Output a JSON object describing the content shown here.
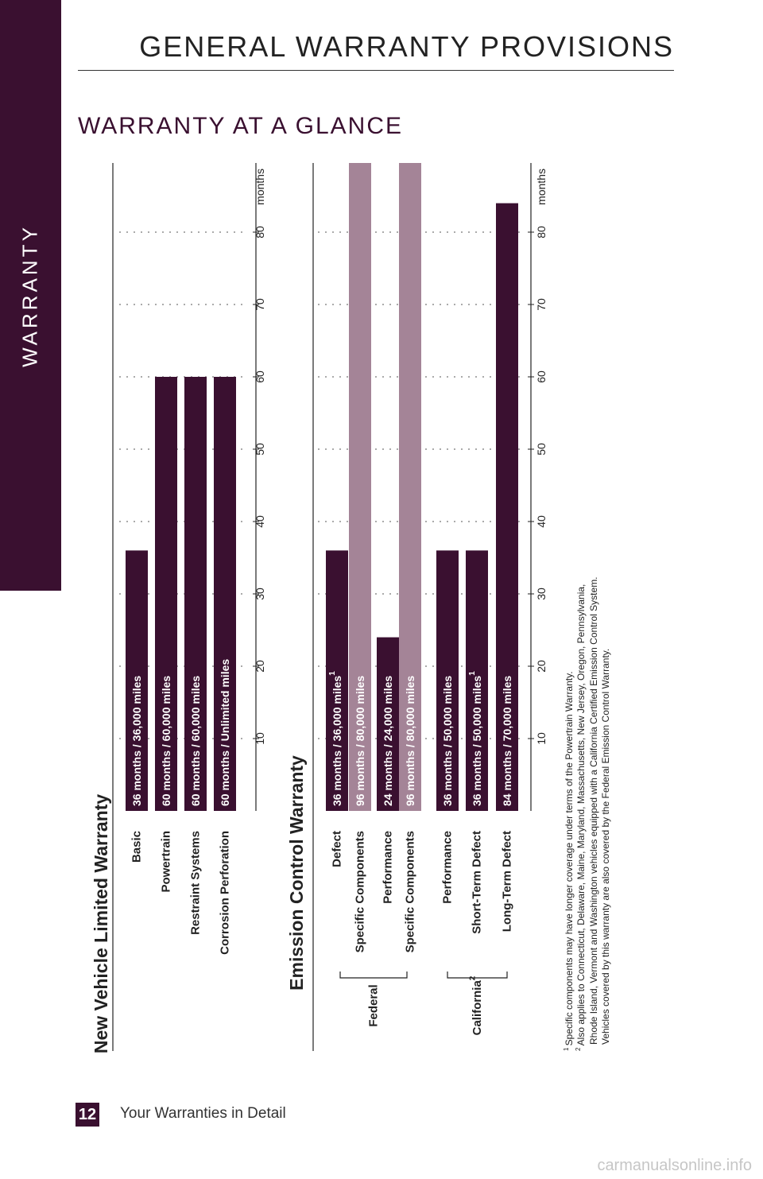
{
  "sidebar": {
    "label": "WARRANTY"
  },
  "header": {
    "title": "GENERAL WARRANTY PROVISIONS"
  },
  "section": {
    "title": "WARRANTY AT A GLANCE"
  },
  "colors": {
    "dark": "#3a1030",
    "light": "#a48497",
    "text": "#222222"
  },
  "chart_data": [
    {
      "type": "bar",
      "title": "New Vehicle Limited Warranty",
      "xlabel": "months",
      "xlim": [
        0,
        90
      ],
      "ticks": [
        10,
        20,
        30,
        40,
        50,
        60,
        70,
        80
      ],
      "grid": true,
      "bars": [
        {
          "category": "Basic",
          "value": 36,
          "label": "36 months  /  36,000 miles",
          "sup": "",
          "color": "dark"
        },
        {
          "category": "Powertrain",
          "value": 60,
          "label": "60 months  /  60,000 miles",
          "sup": "",
          "color": "dark"
        },
        {
          "category": "Restraint Systems",
          "value": 60,
          "label": "60 months  /  60,000 miles",
          "sup": "",
          "color": "dark"
        },
        {
          "category": "Corrosion Perforation",
          "value": 60,
          "label": "60 months  /  Unlimited miles",
          "sup": "",
          "color": "dark"
        }
      ]
    },
    {
      "type": "bar",
      "title": "Emission Control Warranty",
      "xlabel": "months",
      "xlim": [
        0,
        90
      ],
      "ticks": [
        10,
        20,
        30,
        40,
        50,
        60,
        70,
        80
      ],
      "grid": true,
      "groups": [
        {
          "name": "Federal",
          "sup": ""
        },
        {
          "name": "California",
          "sup": "2"
        }
      ],
      "bars": [
        {
          "group": "Federal",
          "category": "Defect",
          "value": 36,
          "label": "36 months  /  36,000 miles",
          "sup": "1",
          "color": "dark"
        },
        {
          "group": "Federal",
          "category": "Specific Components",
          "value": 96,
          "label": "96 months  /  80,000 miles",
          "sup": "",
          "color": "light"
        },
        {
          "group": "Federal",
          "category": "Performance",
          "value": 24,
          "label": "24 months  /  24,000 miles",
          "sup": "",
          "color": "dark"
        },
        {
          "group": "Federal",
          "category": "Specific Components",
          "value": 96,
          "label": "96 months  /  80,000 miles",
          "sup": "",
          "color": "light"
        },
        {
          "group": "California",
          "category": "Performance",
          "value": 36,
          "label": "36 months  /  50,000 miles",
          "sup": "",
          "color": "dark"
        },
        {
          "group": "California",
          "category": "Short-Term Defect",
          "value": 36,
          "label": "36 months  /  50,000 miles",
          "sup": "1",
          "color": "dark"
        },
        {
          "group": "California",
          "category": "Long-Term Defect",
          "value": 84,
          "label": "84 months  /  70,000 miles",
          "sup": "",
          "color": "dark"
        }
      ]
    }
  ],
  "footnotes": [
    {
      "sup": "1",
      "text": "Specific components may have longer coverage under terms of the Powertrain Warranty."
    },
    {
      "sup": "2",
      "text": "Also applies to Connecticut, Delaware, Maine, Maryland, Massachusetts, New Jersey, Oregon, Pennsylvania,"
    },
    {
      "sup": "",
      "text": "Rhode Island, Vermont and Washington vehicles equipped with a California Certified Emission Control System."
    },
    {
      "sup": "",
      "text": "Vehicles covered by this warranty are also covered by the Federal Emission Control Warranty."
    }
  ],
  "footer": {
    "page_number": "12",
    "text": "Your Warranties in Detail"
  },
  "watermark": "carmanualsonline.info"
}
